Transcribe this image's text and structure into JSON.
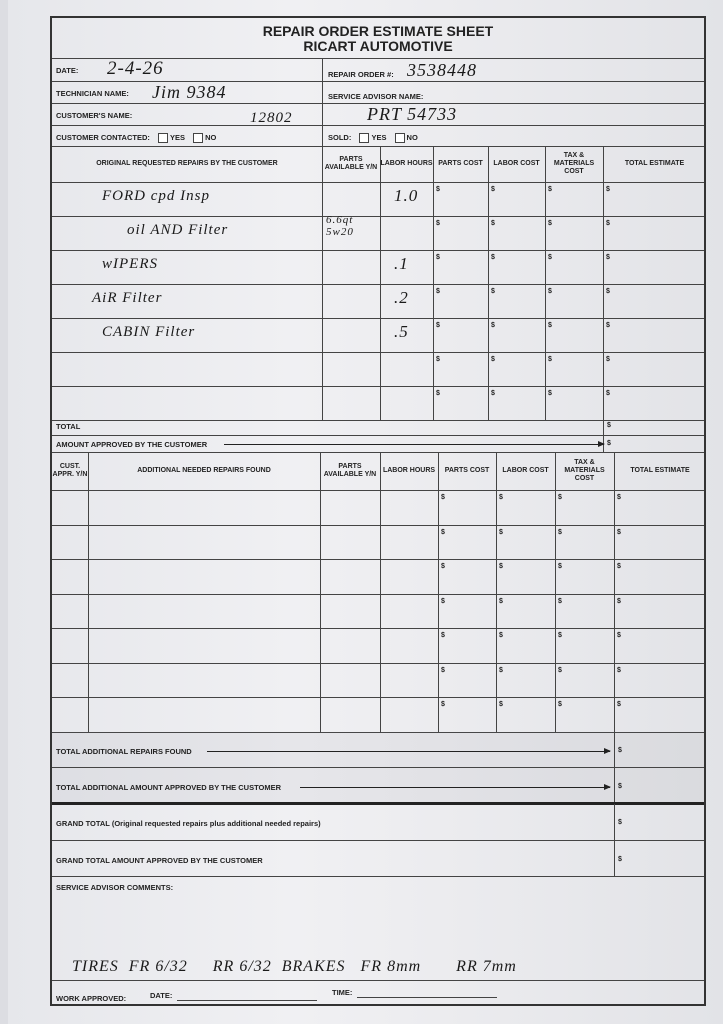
{
  "form": {
    "title": "REPAIR ORDER ESTIMATE SHEET",
    "company": "RICART AUTOMOTIVE",
    "labels": {
      "date": "DATE:",
      "repair_order": "REPAIR ORDER #:",
      "technician": "TECHNICIAN NAME:",
      "service_advisor": "SERVICE ADVISOR NAME:",
      "customer": "CUSTOMER'S NAME:",
      "customer_contacted": "CUSTOMER CONTACTED:",
      "sold": "SOLD:",
      "yes": "YES",
      "no": "NO"
    },
    "values": {
      "date": "2-4-26",
      "repair_order": "3538448",
      "technician": "Jim 9384",
      "customer": "12802",
      "service_advisor_note": "PRT 54733"
    }
  },
  "original_repairs": {
    "headers": [
      "ORIGINAL REQUESTED REPAIRS BY THE CUSTOMER",
      "PARTS AVAILABLE Y/N",
      "LABOR HOURS",
      "PARTS COST",
      "LABOR COST",
      "TAX & MATERIALS COST",
      "TOTAL ESTIMATE"
    ],
    "rows": [
      {
        "desc": "FORD cpd Insp",
        "parts": "",
        "labor": "1.0"
      },
      {
        "desc": "oil AND Filter",
        "parts": "6.6qt 5w20",
        "labor": ""
      },
      {
        "desc": "wIPERS",
        "parts": "",
        "labor": ".1"
      },
      {
        "desc": "AiR Filter",
        "parts": "",
        "labor": ".2"
      },
      {
        "desc": "CABIN Filter",
        "parts": "",
        "labor": ".5"
      },
      {
        "desc": "",
        "parts": "",
        "labor": ""
      },
      {
        "desc": "",
        "parts": "",
        "labor": ""
      }
    ],
    "currency": "$",
    "total_label": "TOTAL",
    "approved_label": "AMOUNT APPROVED BY THE CUSTOMER"
  },
  "additional_repairs": {
    "headers": [
      "CUST. APPR. Y/N",
      "ADDITIONAL NEEDED REPAIRS FOUND",
      "PARTS AVAILABLE Y/N",
      "LABOR HOURS",
      "PARTS COST",
      "LABOR COST",
      "TAX & MATERIALS COST",
      "TOTAL ESTIMATE"
    ],
    "row_count": 7,
    "total_found_label": "TOTAL ADDITIONAL REPAIRS FOUND",
    "total_approved_label": "TOTAL ADDITIONAL AMOUNT APPROVED BY THE CUSTOMER"
  },
  "grand": {
    "grand_total_label": "GRAND TOTAL (Original requested repairs plus additional needed repairs)",
    "grand_approved_label": "GRAND TOTAL AMOUNT APPROVED BY THE CUSTOMER"
  },
  "comments": {
    "label": "SERVICE ADVISOR COMMENTS:",
    "text": "TIRES  FR 6/32     RR 6/32  BRAKES   FR 8mm       RR 7mm"
  },
  "footer": {
    "work_approved": "WORK APPROVED:",
    "date": "DATE:",
    "time": "TIME:"
  }
}
